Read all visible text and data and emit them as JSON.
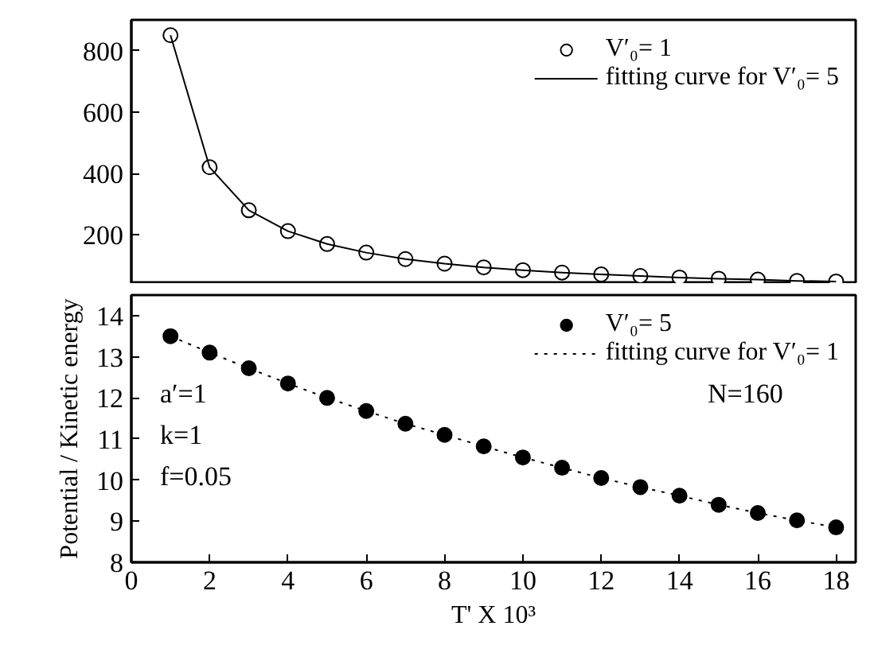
{
  "chart_data": [
    {
      "type": "scatter",
      "xlim": [
        0,
        18.5
      ],
      "xticks": [
        0,
        2,
        4,
        6,
        8,
        10,
        12,
        14,
        16,
        18
      ],
      "ylim": [
        40,
        900
      ],
      "yticks": [
        200,
        400,
        600,
        800
      ],
      "tick_labels": "y",
      "legend": "top right",
      "grid": false,
      "series": [
        {
          "name": "V′₀= 1",
          "marker": "circle",
          "color": "#ffffff",
          "x": [
            1,
            2,
            3,
            4,
            5,
            6,
            7,
            8,
            9,
            10,
            11,
            12,
            13,
            14,
            15,
            16,
            17,
            18
          ],
          "values": [
            850,
            420,
            280,
            212,
            170,
            142,
            121,
            106,
            94,
            85,
            77,
            71,
            66,
            61,
            57,
            54,
            50,
            48
          ]
        },
        {
          "name": "fitting curve for V′₀= 5",
          "type": "line",
          "line_style": "solid",
          "color": "#000000",
          "x": [
            1,
            2,
            3,
            4,
            5,
            6,
            7,
            8,
            9,
            10,
            11,
            12,
            13,
            14,
            15,
            16,
            17,
            18
          ],
          "values": [
            850,
            420,
            280,
            212,
            170,
            142,
            121,
            106,
            94,
            85,
            77,
            71,
            66,
            61,
            57,
            54,
            50,
            48
          ]
        }
      ]
    },
    {
      "type": "scatter",
      "xlim": [
        0,
        18.5
      ],
      "xticks": [
        0,
        2,
        4,
        6,
        8,
        10,
        12,
        14,
        16,
        18
      ],
      "ylim": [
        8,
        14.5
      ],
      "yticks": [
        8,
        9,
        10,
        11,
        12,
        13,
        14
      ],
      "xlabel": "T' X 10³",
      "ylabel": "Potential / Kinetic energy",
      "grid": false,
      "legend": "top right",
      "annotations": [
        "a′=1",
        "k=1",
        "f=0.05",
        "N=160"
      ],
      "series": [
        {
          "name": "V′₀= 5",
          "marker": "circle",
          "color": "#000000",
          "x": [
            1,
            2,
            3,
            4,
            5,
            6,
            7,
            8,
            9,
            10,
            11,
            12,
            13,
            14,
            15,
            16,
            17,
            18
          ],
          "values": [
            13.5,
            13.1,
            12.72,
            12.35,
            12.0,
            11.68,
            11.37,
            11.1,
            10.82,
            10.55,
            10.3,
            10.05,
            9.83,
            9.62,
            9.4,
            9.2,
            9.02,
            8.85
          ]
        },
        {
          "name": "fitting curve for V′₀= 1",
          "type": "line",
          "line_style": "dotted",
          "color": "#000000",
          "x": [
            1,
            2,
            3,
            4,
            5,
            6,
            7,
            8,
            9,
            10,
            11,
            12,
            13,
            14,
            15,
            16,
            17,
            18
          ],
          "values": [
            13.5,
            13.1,
            12.72,
            12.35,
            12.0,
            11.68,
            11.37,
            11.1,
            10.82,
            10.55,
            10.3,
            10.05,
            9.83,
            9.62,
            9.4,
            9.2,
            9.02,
            8.85
          ]
        }
      ]
    }
  ]
}
